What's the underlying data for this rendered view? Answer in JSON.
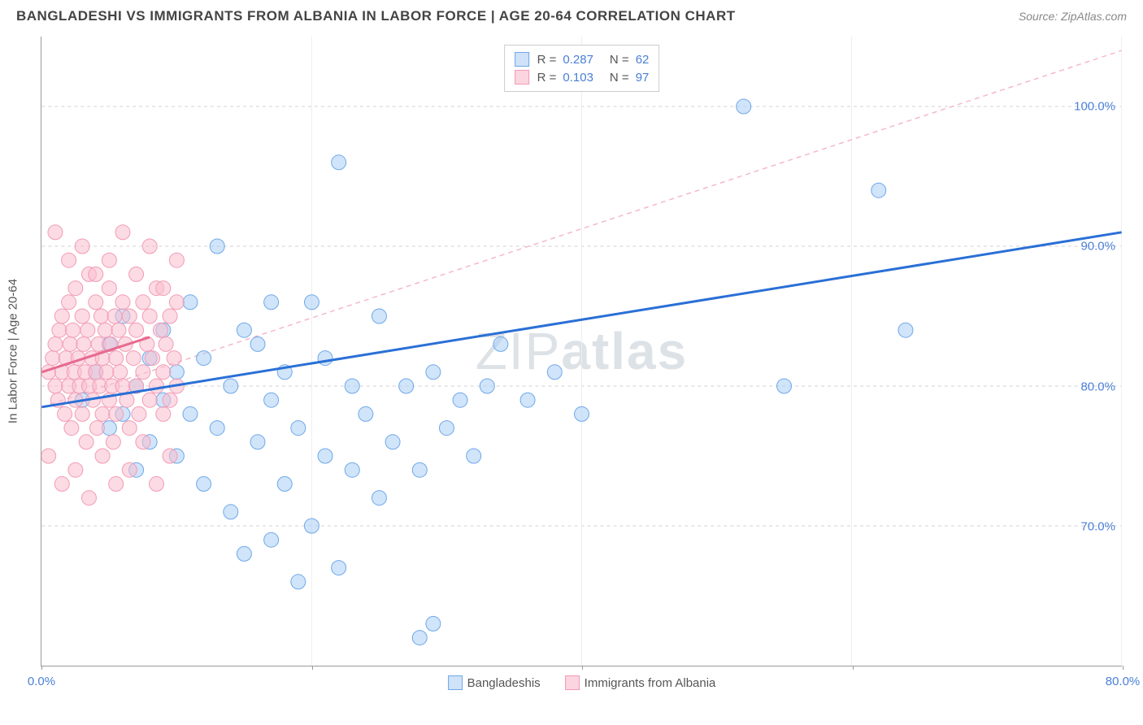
{
  "title": "BANGLADESHI VS IMMIGRANTS FROM ALBANIA IN LABOR FORCE | AGE 20-64 CORRELATION CHART",
  "source": "Source: ZipAtlas.com",
  "yaxis_label": "In Labor Force | Age 20-64",
  "watermark_light": "ZIP",
  "watermark_bold": "atlas",
  "chart": {
    "xlim": [
      0,
      80
    ],
    "ylim": [
      60,
      105
    ],
    "xticks": [
      0,
      20,
      40,
      60,
      80
    ],
    "xtick_labels": [
      "0.0%",
      "",
      "",
      "",
      "80.0%"
    ],
    "yticks": [
      70,
      80,
      90,
      100
    ],
    "ytick_labels": [
      "70.0%",
      "80.0%",
      "90.0%",
      "100.0%"
    ],
    "grid_color": "#d0d0d0",
    "axis_color": "#999999",
    "tick_label_color": "#4a7fd6"
  },
  "legend_top": [
    {
      "color_fill": "#cfe2f8",
      "color_border": "#6fa8e8",
      "r_label": "R =",
      "r_value": "0.287",
      "n_label": "N =",
      "n_value": "62"
    },
    {
      "color_fill": "#fbd5e0",
      "color_border": "#f29bb5",
      "r_label": "R =",
      "r_value": "0.103",
      "n_label": "N =",
      "n_value": "97"
    }
  ],
  "legend_bottom": [
    {
      "color_fill": "#cfe2f8",
      "color_border": "#6fa8e8",
      "label": "Bangladeshis"
    },
    {
      "color_fill": "#fbd5e0",
      "color_border": "#f29bb5",
      "label": "Immigrants from Albania"
    }
  ],
  "series": [
    {
      "name": "Bangladeshis",
      "marker_fill": "rgba(170,205,245,0.55)",
      "marker_stroke": "#6fa8e8",
      "marker_radius": 9,
      "trend": {
        "x1": 0,
        "y1": 78.5,
        "x2": 80,
        "y2": 91.0,
        "stroke": "#2a6fd6",
        "width": 3,
        "dash": "none"
      },
      "trend_ext": {
        "x1": 0,
        "y1": 78.5,
        "x2": 80,
        "y2": 104.0,
        "stroke": "#f5b8c8",
        "width": 1.5,
        "dash": "6,5"
      },
      "points": [
        [
          3,
          79
        ],
        [
          4,
          81
        ],
        [
          5,
          77
        ],
        [
          5,
          83
        ],
        [
          6,
          78
        ],
        [
          6,
          85
        ],
        [
          7,
          74
        ],
        [
          7,
          80
        ],
        [
          8,
          82
        ],
        [
          8,
          76
        ],
        [
          9,
          84
        ],
        [
          9,
          79
        ],
        [
          10,
          81
        ],
        [
          10,
          75
        ],
        [
          11,
          86
        ],
        [
          11,
          78
        ],
        [
          12,
          73
        ],
        [
          12,
          82
        ],
        [
          13,
          90
        ],
        [
          13,
          77
        ],
        [
          14,
          80
        ],
        [
          14,
          71
        ],
        [
          15,
          84
        ],
        [
          15,
          68
        ],
        [
          16,
          83
        ],
        [
          16,
          76
        ],
        [
          17,
          86
        ],
        [
          17,
          79
        ],
        [
          18,
          73
        ],
        [
          18,
          81
        ],
        [
          19,
          77
        ],
        [
          19,
          66
        ],
        [
          20,
          86
        ],
        [
          20,
          70
        ],
        [
          21,
          75
        ],
        [
          21,
          82
        ],
        [
          22,
          96
        ],
        [
          22,
          67
        ],
        [
          23,
          80
        ],
        [
          23,
          74
        ],
        [
          24,
          78
        ],
        [
          25,
          85
        ],
        [
          25,
          72
        ],
        [
          26,
          76
        ],
        [
          27,
          80
        ],
        [
          28,
          74
        ],
        [
          28,
          62
        ],
        [
          29,
          81
        ],
        [
          30,
          77
        ],
        [
          31,
          79
        ],
        [
          32,
          75
        ],
        [
          33,
          80
        ],
        [
          34,
          83
        ],
        [
          36,
          79
        ],
        [
          38,
          81
        ],
        [
          40,
          78
        ],
        [
          52,
          100
        ],
        [
          55,
          80
        ],
        [
          62,
          94
        ],
        [
          64,
          84
        ],
        [
          29,
          63
        ],
        [
          17,
          69
        ]
      ]
    },
    {
      "name": "Immigrants from Albania",
      "marker_fill": "rgba(250,190,205,0.55)",
      "marker_stroke": "#f29bb5",
      "marker_radius": 9,
      "trend": {
        "x1": 0,
        "y1": 81.0,
        "x2": 8,
        "y2": 83.5,
        "stroke": "#e86a8f",
        "width": 3,
        "dash": "none"
      },
      "points": [
        [
          0.5,
          81
        ],
        [
          0.8,
          82
        ],
        [
          1,
          80
        ],
        [
          1,
          83
        ],
        [
          1.2,
          79
        ],
        [
          1.3,
          84
        ],
        [
          1.5,
          81
        ],
        [
          1.5,
          85
        ],
        [
          1.7,
          78
        ],
        [
          1.8,
          82
        ],
        [
          2,
          80
        ],
        [
          2,
          86
        ],
        [
          2.1,
          83
        ],
        [
          2.2,
          77
        ],
        [
          2.3,
          84
        ],
        [
          2.4,
          81
        ],
        [
          2.5,
          79
        ],
        [
          2.5,
          87
        ],
        [
          2.7,
          82
        ],
        [
          2.8,
          80
        ],
        [
          3,
          85
        ],
        [
          3,
          78
        ],
        [
          3.1,
          83
        ],
        [
          3.2,
          81
        ],
        [
          3.3,
          76
        ],
        [
          3.4,
          84
        ],
        [
          3.5,
          80
        ],
        [
          3.5,
          88
        ],
        [
          3.7,
          82
        ],
        [
          3.8,
          79
        ],
        [
          4,
          86
        ],
        [
          4,
          81
        ],
        [
          4.1,
          77
        ],
        [
          4.2,
          83
        ],
        [
          4.3,
          80
        ],
        [
          4.4,
          85
        ],
        [
          4.5,
          78
        ],
        [
          4.5,
          82
        ],
        [
          4.7,
          84
        ],
        [
          4.8,
          81
        ],
        [
          5,
          79
        ],
        [
          5,
          87
        ],
        [
          5.1,
          83
        ],
        [
          5.2,
          80
        ],
        [
          5.3,
          76
        ],
        [
          5.4,
          85
        ],
        [
          5.5,
          82
        ],
        [
          5.5,
          78
        ],
        [
          5.7,
          84
        ],
        [
          5.8,
          81
        ],
        [
          6,
          80
        ],
        [
          6,
          86
        ],
        [
          6.2,
          83
        ],
        [
          6.3,
          79
        ],
        [
          6.5,
          85
        ],
        [
          6.5,
          77
        ],
        [
          6.8,
          82
        ],
        [
          7,
          84
        ],
        [
          7,
          80
        ],
        [
          7.2,
          78
        ],
        [
          7.5,
          86
        ],
        [
          7.5,
          81
        ],
        [
          7.8,
          83
        ],
        [
          8,
          79
        ],
        [
          8,
          85
        ],
        [
          8.2,
          82
        ],
        [
          8.5,
          80
        ],
        [
          8.5,
          87
        ],
        [
          8.8,
          84
        ],
        [
          9,
          81
        ],
        [
          9,
          78
        ],
        [
          9.2,
          83
        ],
        [
          9.5,
          85
        ],
        [
          9.5,
          79
        ],
        [
          9.8,
          82
        ],
        [
          10,
          80
        ],
        [
          10,
          86
        ],
        [
          0.5,
          75
        ],
        [
          1,
          91
        ],
        [
          1.5,
          73
        ],
        [
          2,
          89
        ],
        [
          2.5,
          74
        ],
        [
          3,
          90
        ],
        [
          3.5,
          72
        ],
        [
          4,
          88
        ],
        [
          4.5,
          75
        ],
        [
          5,
          89
        ],
        [
          5.5,
          73
        ],
        [
          6,
          91
        ],
        [
          6.5,
          74
        ],
        [
          7,
          88
        ],
        [
          7.5,
          76
        ],
        [
          8,
          90
        ],
        [
          8.5,
          73
        ],
        [
          9,
          87
        ],
        [
          9.5,
          75
        ],
        [
          10,
          89
        ]
      ]
    }
  ]
}
